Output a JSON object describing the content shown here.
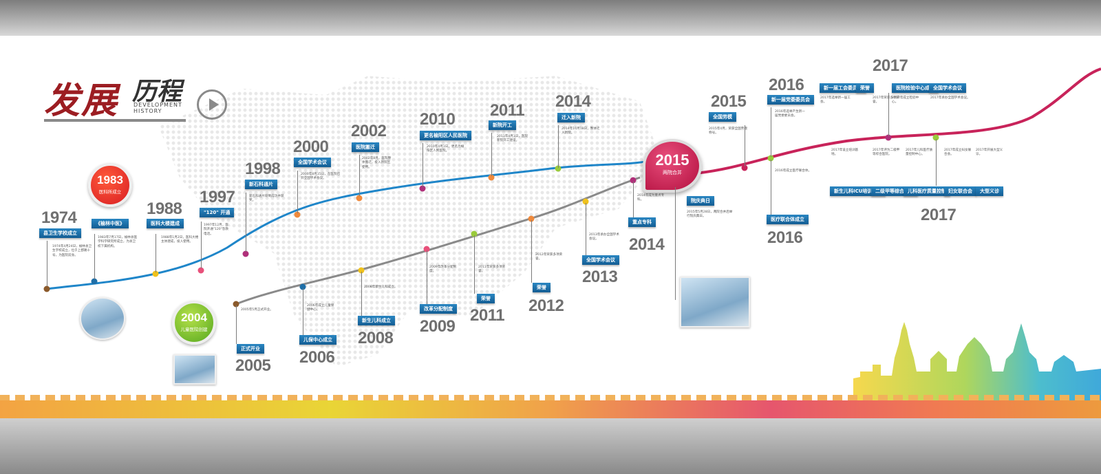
{
  "header": {
    "title_main": "发展",
    "title_sub": "历程",
    "title_en_line1": "DEVELOPMENT",
    "title_en_line2": "HISTORY",
    "next_icon": "chevron-right-icon"
  },
  "colors": {
    "upper_line": "#1f86c9",
    "lower_line": "#8a8a8a",
    "right_line": "#c8235a",
    "tag": "#1f6fa8",
    "year_text": "#707070"
  },
  "badges": {
    "b1983": {
      "year": "1983",
      "label": "医科所成立"
    },
    "b2004": {
      "year": "2004",
      "label": "儿童医院创建"
    },
    "b2015": {
      "year": "2015",
      "label": "两院合并"
    }
  },
  "upper": [
    {
      "year": "1974",
      "tag": "县卫生学校成立",
      "desc": "1974年4月24日，榆林县卫生学校成立，位于上郡路十号，为医院前身。"
    },
    {
      "year": "",
      "tag": "《榆林中医》",
      "desc": "1983年7月17日，榆林县医学科学研究所成立，为县卫校下属机构。"
    },
    {
      "year": "1988",
      "tag": "医科大楼建成",
      "desc": "1988年1月2日，医科大楼主体建成，投入使用。"
    },
    {
      "year": "1997",
      "tag": "\"120\" 开通",
      "desc": "1997年12月，医院开通\"120\"急救电话。"
    },
    {
      "year": "1998",
      "tag": "新石科通片",
      "desc": "新石科通片研制成功并获奖。"
    },
    {
      "year": "2000",
      "tag": "全国学术会议",
      "desc": "2000年8月15日，在医院召开全国学术会议。"
    },
    {
      "year": "2002",
      "tag": "医院搬迁",
      "desc": "2002年8月，医院整体搬迁，投入新院区使用。"
    },
    {
      "year": "2010",
      "tag": "更名榆阳区人民医院",
      "desc": "2010年4月1日，更名为榆阳区人民医院。"
    },
    {
      "year": "2011",
      "tag": "新院开工",
      "desc": "2011年4月1日，医院新院开工建设。"
    },
    {
      "year": "2014",
      "tag": "迁入新院",
      "desc": "2014年10月18日，整体迁入新院。"
    }
  ],
  "lower": [
    {
      "year": "2005",
      "tag": "正式开业",
      "desc": "2005年5月正式开业。"
    },
    {
      "year": "2006",
      "tag": "儿保中心成立",
      "desc": "2006年成立儿童保健中心。"
    },
    {
      "year": "2008",
      "tag": "新生儿科成立",
      "desc": "2008年新生儿科成立。"
    },
    {
      "year": "2009",
      "tag": "改革分配制度",
      "desc": "2009年改革分配制度。"
    },
    {
      "year": "2011",
      "tag": "荣誉",
      "desc": "2011年荣获多项荣誉。"
    },
    {
      "year": "2012",
      "tag": "荣誉",
      "desc": "2012年荣获多项荣誉。"
    },
    {
      "year": "2013",
      "tag": "全国学术会议",
      "desc": "2013年承办全国学术会议。"
    },
    {
      "year": "2014",
      "tag": "重点专科",
      "desc": "2014年成为重点专科。"
    }
  ],
  "right_top": [
    {
      "year": "2015",
      "tag": "全国劳模",
      "desc": "2015年4月，荣获全国劳模称号。"
    },
    {
      "year": "2016",
      "tag": "新一届党委委员会",
      "desc": "2016年选举产生新一届党委委员会。"
    },
    {
      "year": "2017",
      "tag": "新一届工会委员会",
      "desc": "2017年选举新一届工会。"
    },
    {
      "year": "",
      "tag": "荣誉",
      "desc": "2017年荣获多项荣誉。"
    },
    {
      "year": "",
      "tag": "医院检验中心成立",
      "desc": "2017年成立检验中心。"
    },
    {
      "year": "",
      "tag": "全国学术会议",
      "desc": "2017年承办全国学术会议。"
    }
  ],
  "right_bottom": [
    {
      "year": "",
      "tag": "院庆典日",
      "desc": "2015年5月28日，两院合并后举行院庆典日。"
    },
    {
      "year": "2016",
      "tag": "医疗联合体成立",
      "desc": "2016年成立医疗联合体。"
    },
    {
      "year": "2017",
      "tag": "新生儿科ICU培训基地",
      "desc": "2017年设立培训基地。"
    },
    {
      "year": "",
      "tag": "二级甲等综合医院",
      "desc": "2017年评为二级甲等综合医院。"
    },
    {
      "year": "",
      "tag": "儿科医疗质量控制",
      "desc": "2017年儿科医疗质量控制中心。"
    },
    {
      "year": "",
      "tag": "妇女联合会",
      "desc": "2017年成立妇女联合会。"
    },
    {
      "year": "",
      "tag": "大型义诊",
      "desc": "2017年开展大型义诊。"
    }
  ]
}
